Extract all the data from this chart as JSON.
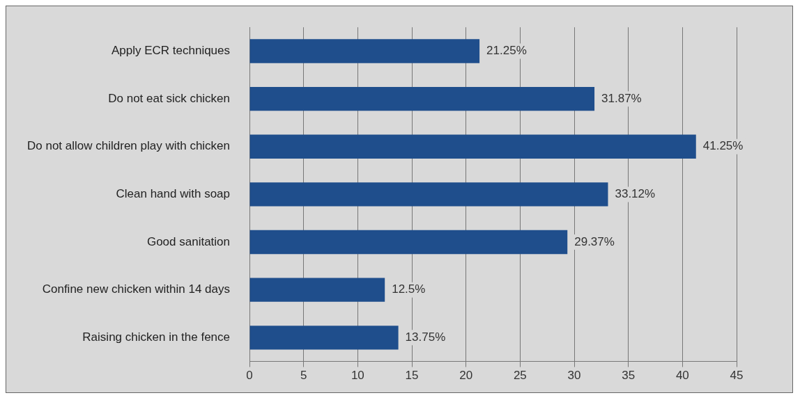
{
  "chart_data": {
    "type": "bar",
    "orientation": "horizontal",
    "categories": [
      "Apply ECR techniques",
      "Do not eat sick chicken",
      "Do not allow children play with chicken",
      "Clean hand with soap",
      "Good sanitation",
      "Confine new chicken within 14 days",
      "Raising chicken in the fence"
    ],
    "values": [
      21.25,
      31.87,
      41.25,
      33.12,
      29.37,
      12.5,
      13.75
    ],
    "value_labels": [
      "21.25%",
      "31.87%",
      "41.25%",
      "33.12%",
      "29.37%",
      "12.5%",
      "13.75%"
    ],
    "color": "#1f4e8c",
    "xlim": [
      0,
      45
    ],
    "xticks": [
      0,
      5,
      10,
      15,
      20,
      25,
      30,
      35,
      40,
      45
    ],
    "grid": "x",
    "legend": false
  }
}
